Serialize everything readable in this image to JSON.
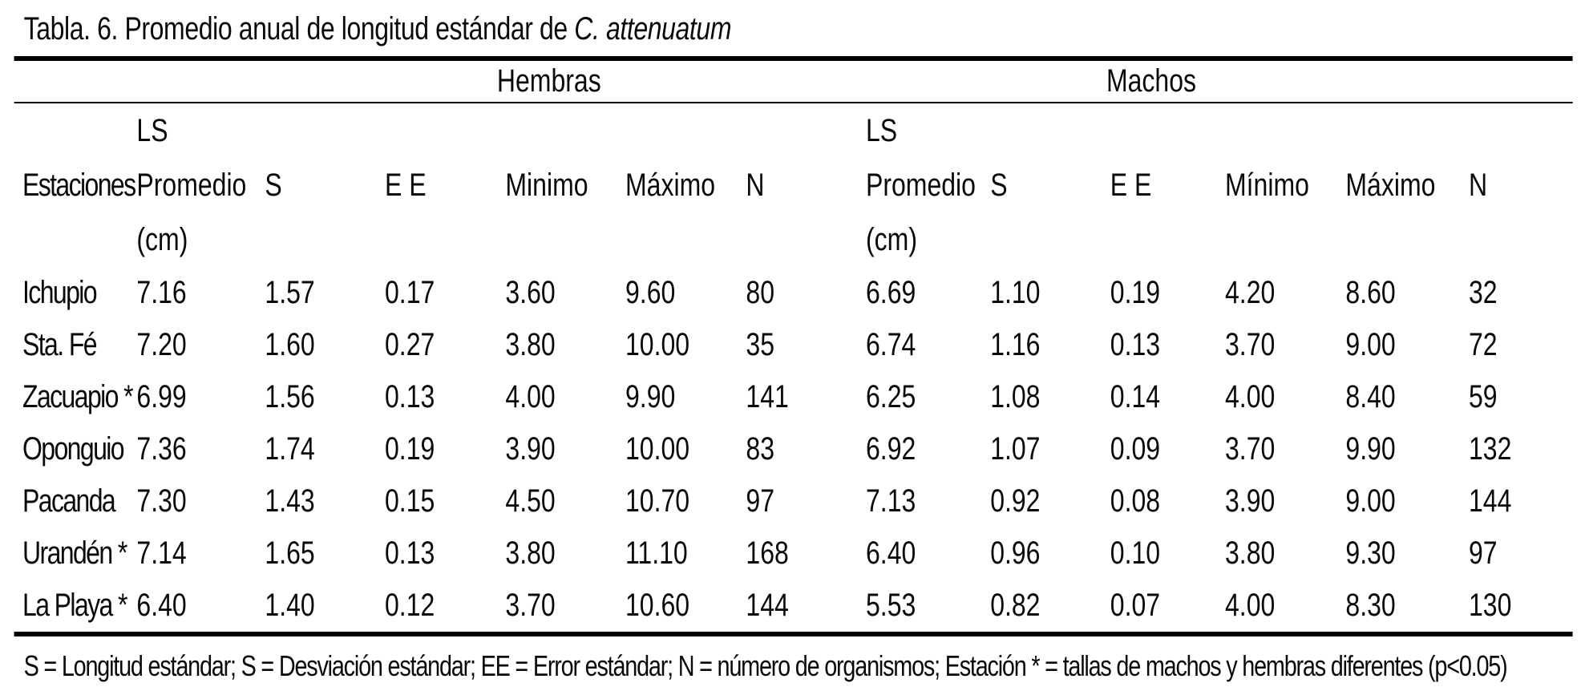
{
  "page": {
    "background_color": "#ffffff",
    "text_color": "#0a0a0a",
    "rule_color": "#000000"
  },
  "table": {
    "title": {
      "prefix": "Tabla. 6. Promedio anual de longitud estándar de ",
      "species_italic": "C. attenuatum"
    },
    "group_headers": {
      "hembras": "Hembras",
      "machos": "Machos"
    },
    "column_headers": {
      "station": "Estaciones",
      "hembras": {
        "promedio_line1": "LS",
        "promedio_line2": "Promedio",
        "promedio_line3": "(cm)",
        "s": "S",
        "ee": "E E",
        "minimo": "Minimo",
        "maximo": "Máximo",
        "n": "N"
      },
      "machos": {
        "promedio_line1": "LS",
        "promedio_line2": "Promedio",
        "promedio_line3": "(cm)",
        "s": "S",
        "ee": "E E",
        "minimo": "Mínimo",
        "maximo": "Máximo",
        "n": "N"
      }
    },
    "rows": [
      {
        "station": "Ichupio",
        "hembras": [
          "7.16",
          "1.57",
          "0.17",
          "3.60",
          "9.60",
          "80"
        ],
        "machos": [
          "6.69",
          "1.10",
          "0.19",
          "4.20",
          "8.60",
          "32"
        ]
      },
      {
        "station": "Sta. Fé",
        "hembras": [
          "7.20",
          "1.60",
          "0.27",
          "3.80",
          "10.00",
          "35"
        ],
        "machos": [
          "6.74",
          "1.16",
          "0.13",
          "3.70",
          "9.00",
          "72"
        ]
      },
      {
        "station": "Zacuapio *",
        "hembras": [
          "6.99",
          "1.56",
          "0.13",
          "4.00",
          "9.90",
          "141"
        ],
        "machos": [
          "6.25",
          "1.08",
          "0.14",
          "4.00",
          "8.40",
          "59"
        ]
      },
      {
        "station": "Oponguio",
        "hembras": [
          "7.36",
          "1.74",
          "0.19",
          "3.90",
          "10.00",
          "83"
        ],
        "machos": [
          "6.92",
          "1.07",
          "0.09",
          "3.70",
          "9.90",
          "132"
        ]
      },
      {
        "station": "Pacanda",
        "hembras": [
          "7.30",
          "1.43",
          "0.15",
          "4.50",
          "10.70",
          "97"
        ],
        "machos": [
          "7.13",
          "0.92",
          "0.08",
          "3.90",
          "9.00",
          "144"
        ]
      },
      {
        "station": "Urandén *",
        "hembras": [
          "7.14",
          "1.65",
          "0.13",
          "3.80",
          "11.10",
          "168"
        ],
        "machos": [
          "6.40",
          "0.96",
          "0.10",
          "3.80",
          "9.30",
          "97"
        ]
      },
      {
        "station": "La Playa *",
        "hembras": [
          "6.40",
          "1.40",
          "0.12",
          "3.70",
          "10.60",
          "144"
        ],
        "machos": [
          "5.53",
          "0.82",
          "0.07",
          "4.00",
          "8.30",
          "130"
        ]
      }
    ],
    "footnote": "S = Longitud estándar; S = Desviación estándar; EE = Error estándar;  N = número de organismos; Estación * = tallas de machos y hembras diferentes (p<0.05)"
  },
  "chart_data": {
    "type": "table",
    "title": "Tabla. 6. Promedio anual de longitud estándar de C. attenuatum",
    "group_columns": [
      "Hembras",
      "Machos"
    ],
    "columns": [
      "Estaciones",
      "LS Promedio (cm)",
      "S",
      "E E",
      "Minimo",
      "Máximo",
      "N",
      "LS Promedio (cm)",
      "S",
      "E E",
      "Mínimo",
      "Máximo",
      "N"
    ],
    "rows": [
      [
        "Ichupio",
        7.16,
        1.57,
        0.17,
        3.6,
        9.6,
        80,
        6.69,
        1.1,
        0.19,
        4.2,
        8.6,
        32
      ],
      [
        "Sta. Fé",
        7.2,
        1.6,
        0.27,
        3.8,
        10.0,
        35,
        6.74,
        1.16,
        0.13,
        3.7,
        9.0,
        72
      ],
      [
        "Zacuapio *",
        6.99,
        1.56,
        0.13,
        4.0,
        9.9,
        141,
        6.25,
        1.08,
        0.14,
        4.0,
        8.4,
        59
      ],
      [
        "Oponguio",
        7.36,
        1.74,
        0.19,
        3.9,
        10.0,
        83,
        6.92,
        1.07,
        0.09,
        3.7,
        9.9,
        132
      ],
      [
        "Pacanda",
        7.3,
        1.43,
        0.15,
        4.5,
        10.7,
        97,
        7.13,
        0.92,
        0.08,
        3.9,
        9.0,
        144
      ],
      [
        "Urandén *",
        7.14,
        1.65,
        0.13,
        3.8,
        11.1,
        168,
        6.4,
        0.96,
        0.1,
        3.8,
        9.3,
        97
      ],
      [
        "La Playa *",
        6.4,
        1.4,
        0.12,
        3.7,
        10.6,
        144,
        5.53,
        0.82,
        0.07,
        4.0,
        8.3,
        130
      ]
    ],
    "footnote": "S = Longitud estándar; S = Desviación estándar; EE = Error estándar; N = número de organismos; Estación * = tallas de machos y hembras diferentes (p<0.05)"
  }
}
